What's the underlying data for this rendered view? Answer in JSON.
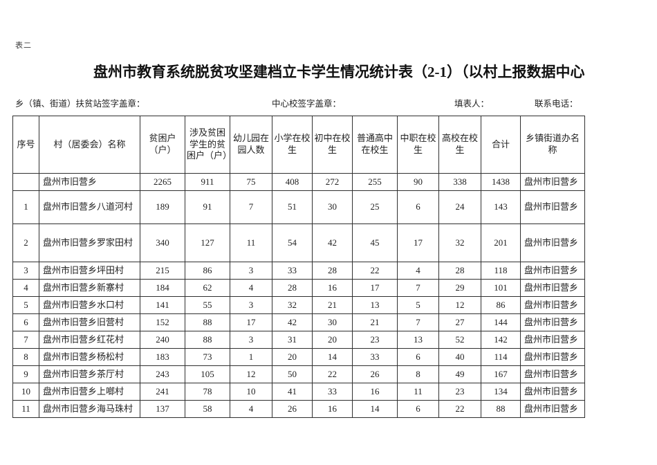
{
  "page": {
    "tag": "表二",
    "title": "盘州市教育系统脱贫攻坚建档立卡学生情况统计表（2-1）（以村上报数据中心",
    "signatures": {
      "township": "乡（镇、街道）扶贫站签字盖章：",
      "central_school": "中心校签字盖章：",
      "filler": "填表人：",
      "phone": "联系电话："
    }
  },
  "table": {
    "headers": [
      "序号",
      "村（居委会）名称",
      "贫困户（户）",
      "涉及贫困学生的贫困户（户）",
      "幼儿园在园人数",
      "小学在校生",
      "初中在校生",
      "普通高中在校生",
      "中职在校生",
      "高校在校生",
      "合计",
      "乡镇街道办名称"
    ],
    "rows": [
      [
        "",
        "盘州市旧营乡",
        "2265",
        "911",
        "75",
        "408",
        "272",
        "255",
        "90",
        "338",
        "1438",
        "盘州市旧营乡"
      ],
      [
        "1",
        "盘州市旧营乡八道河村",
        "189",
        "91",
        "7",
        "51",
        "30",
        "25",
        "6",
        "24",
        "143",
        "盘州市旧营乡"
      ],
      [
        "2",
        "盘州市旧营乡罗家田村",
        "340",
        "127",
        "11",
        "54",
        "42",
        "45",
        "17",
        "32",
        "201",
        "盘州市旧营乡"
      ],
      [
        "3",
        "盘州市旧营乡坪田村",
        "215",
        "86",
        "3",
        "33",
        "28",
        "22",
        "4",
        "28",
        "118",
        "盘州市旧营乡"
      ],
      [
        "4",
        "盘州市旧营乡新寨村",
        "184",
        "62",
        "4",
        "28",
        "16",
        "17",
        "7",
        "29",
        "101",
        "盘州市旧营乡"
      ],
      [
        "5",
        "盘州市旧营乡水口村",
        "141",
        "55",
        "3",
        "32",
        "21",
        "13",
        "5",
        "12",
        "86",
        "盘州市旧营乡"
      ],
      [
        "6",
        "盘州市旧营乡旧营村",
        "152",
        "88",
        "17",
        "42",
        "30",
        "21",
        "7",
        "27",
        "144",
        "盘州市旧营乡"
      ],
      [
        "7",
        "盘州市旧营乡红花村",
        "240",
        "88",
        "3",
        "31",
        "20",
        "23",
        "13",
        "52",
        "142",
        "盘州市旧营乡"
      ],
      [
        "8",
        "盘州市旧营乡杨松村",
        "183",
        "73",
        "1",
        "20",
        "14",
        "33",
        "6",
        "40",
        "114",
        "盘州市旧营乡"
      ],
      [
        "9",
        "盘州市旧营乡茶厅村",
        "243",
        "105",
        "12",
        "50",
        "22",
        "26",
        "8",
        "49",
        "167",
        "盘州市旧营乡"
      ],
      [
        "10",
        "盘州市旧营乡上啷村",
        "241",
        "78",
        "10",
        "41",
        "33",
        "16",
        "11",
        "23",
        "134",
        "盘州市旧营乡"
      ],
      [
        "11",
        "盘州市旧营乡海马珠村",
        "137",
        "58",
        "4",
        "26",
        "16",
        "14",
        "6",
        "22",
        "88",
        "盘州市旧营乡"
      ]
    ]
  }
}
